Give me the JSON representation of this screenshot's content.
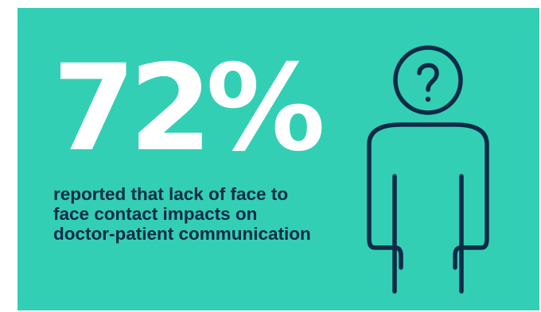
{
  "infographic": {
    "stat_value": "72%",
    "stat_caption": "reported that lack of face to face contact impacts on doctor-patient communication",
    "icon": "person-with-question-mark-icon",
    "colors": {
      "background": "#33cfb4",
      "stat_text": "#ffffff",
      "caption_text": "#0f2a47",
      "icon_stroke": "#0f2a47"
    }
  }
}
